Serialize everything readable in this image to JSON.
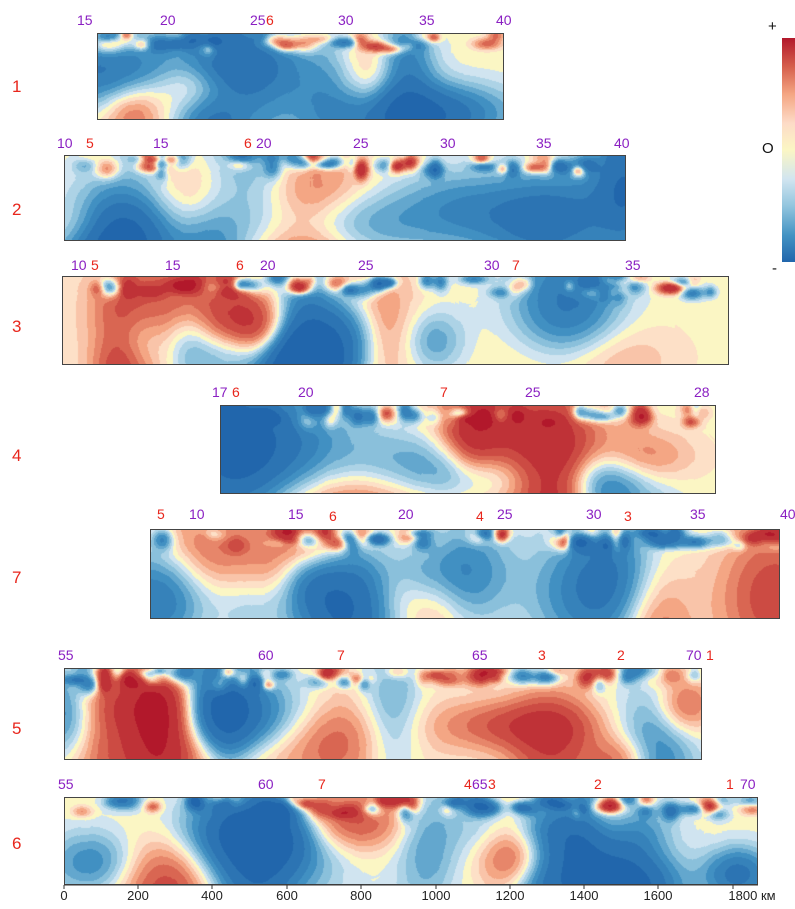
{
  "legend": {
    "plus": "+",
    "zero": "O",
    "minus": "-",
    "colors": [
      "#b2182b",
      "#d6604d",
      "#f4a582",
      "#fddbc7",
      "#fbf6c4",
      "#d1e5f0",
      "#92c5de",
      "#4393c3",
      "#2166ac"
    ]
  },
  "axis": {
    "ticks": [
      "0",
      "200",
      "400",
      "600",
      "800",
      "1000",
      "1200",
      "1400",
      "1600",
      "1800 км"
    ]
  },
  "profiles": [
    {
      "name": "1",
      "km_labels": [
        "15",
        "20",
        "25",
        "30",
        "35",
        "40"
      ],
      "feature_labels": [
        "6"
      ]
    },
    {
      "name": "2",
      "km_labels": [
        "10",
        "15",
        "20",
        "25",
        "30",
        "35",
        "40"
      ],
      "feature_labels": [
        "5",
        "6"
      ]
    },
    {
      "name": "3",
      "km_labels": [
        "10",
        "15",
        "20",
        "25",
        "30",
        "35"
      ],
      "feature_labels": [
        "5",
        "6",
        "7"
      ]
    },
    {
      "name": "4",
      "km_labels": [
        "17",
        "20",
        "25",
        "28"
      ],
      "feature_labels": [
        "6",
        "7"
      ]
    },
    {
      "name": "7",
      "km_labels": [
        "10",
        "15",
        "20",
        "25",
        "30",
        "35",
        "40"
      ],
      "feature_labels": [
        "5",
        "6",
        "4",
        "3"
      ]
    },
    {
      "name": "5",
      "km_labels": [
        "55",
        "60",
        "65",
        "70"
      ],
      "feature_labels": [
        "7",
        "3",
        "2",
        "1"
      ]
    },
    {
      "name": "6",
      "km_labels": [
        "55",
        "60",
        "4",
        "65",
        "70"
      ],
      "feature_labels": [
        "7",
        "3",
        "2",
        "1"
      ]
    }
  ]
}
